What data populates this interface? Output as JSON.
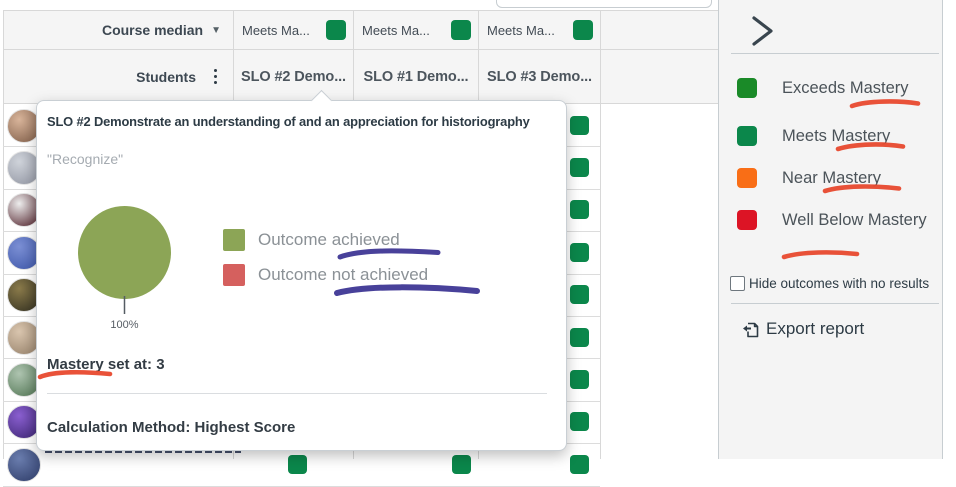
{
  "colors": {
    "meets_square": "#0b874b",
    "grid_header_bg": "#f5f5f5",
    "marker_red": "#e8492e",
    "marker_purple": "#3f3795"
  },
  "search": {
    "value": ""
  },
  "table": {
    "median_label": "Course median",
    "students_label": "Students",
    "outcome_columns": [
      {
        "median": "Meets Ma...",
        "header": "SLO #2 Demo...",
        "median_color": "#0b874b"
      },
      {
        "median": "Meets Ma...",
        "header": "SLO #1 Demo...",
        "median_color": "#0b874b"
      },
      {
        "median": "Meets Ma...",
        "header": "SLO #3 Demo...",
        "median_color": "#0b874b"
      }
    ],
    "rows": [
      {
        "statuses": [
          "meets",
          "meets",
          "meets"
        ],
        "avatar": [
          "#d8b49a",
          "#7c5a45"
        ]
      },
      {
        "statuses": [
          "meets",
          "meets",
          "meets"
        ],
        "avatar": [
          "#cfd3da",
          "#8f93a0"
        ]
      },
      {
        "statuses": [
          "meets",
          "meets",
          "meets"
        ],
        "avatar": [
          "#ededed",
          "#4a1822"
        ]
      },
      {
        "statuses": [
          "meets",
          "meets",
          "meets"
        ],
        "avatar": [
          "#7b8fd4",
          "#3c55a8"
        ]
      },
      {
        "statuses": [
          "meets",
          "meets",
          "meets"
        ],
        "avatar": [
          "#8a7a4a",
          "#2f2d1f"
        ]
      },
      {
        "statuses": [
          "meets",
          "meets",
          "meets"
        ],
        "avatar": [
          "#d9c5ae",
          "#937e67"
        ]
      },
      {
        "statuses": [
          "meets",
          "meets",
          "meets"
        ],
        "avatar": [
          "#aec4b0",
          "#4e7350"
        ]
      },
      {
        "statuses": [
          "meets",
          "meets",
          "meets"
        ],
        "avatar": [
          "#8a5fd0",
          "#3a2470"
        ]
      },
      {
        "statuses": [
          "meets",
          "meets",
          "meets"
        ],
        "avatar": [
          "#6a7dae",
          "#2c3a66"
        ]
      }
    ]
  },
  "popover": {
    "title": "SLO #2 Demonstrate an understanding of and an appreciation for historiography",
    "subtitle": "\"Recognize\"",
    "chart_data": {
      "type": "pie",
      "slices": [
        {
          "label": "Outcome achieved",
          "value": 100,
          "color": "#8ca556"
        },
        {
          "label": "Outcome not achieved",
          "value": 0,
          "color": "#d5605e"
        }
      ],
      "data_label": "100%"
    },
    "legend": [
      {
        "label": "Outcome achieved",
        "color": "#8ca556"
      },
      {
        "label": "Outcome not achieved",
        "color": "#d5605e"
      }
    ],
    "mastery_text": "Mastery set at: 3",
    "calculation_text": "Calculation Method: Highest Score"
  },
  "sidebar": {
    "legend": [
      {
        "label": "Exceeds Mastery",
        "color": "#1a8a28"
      },
      {
        "label": "Meets Mastery",
        "color": "#0b874b"
      },
      {
        "label": "Near Mastery",
        "color": "#f96e16"
      },
      {
        "label": "Well Below Mastery",
        "color": "#dc1425"
      }
    ],
    "hide_checkbox_label": "Hide outcomes with no results",
    "export_label": "Export report"
  }
}
